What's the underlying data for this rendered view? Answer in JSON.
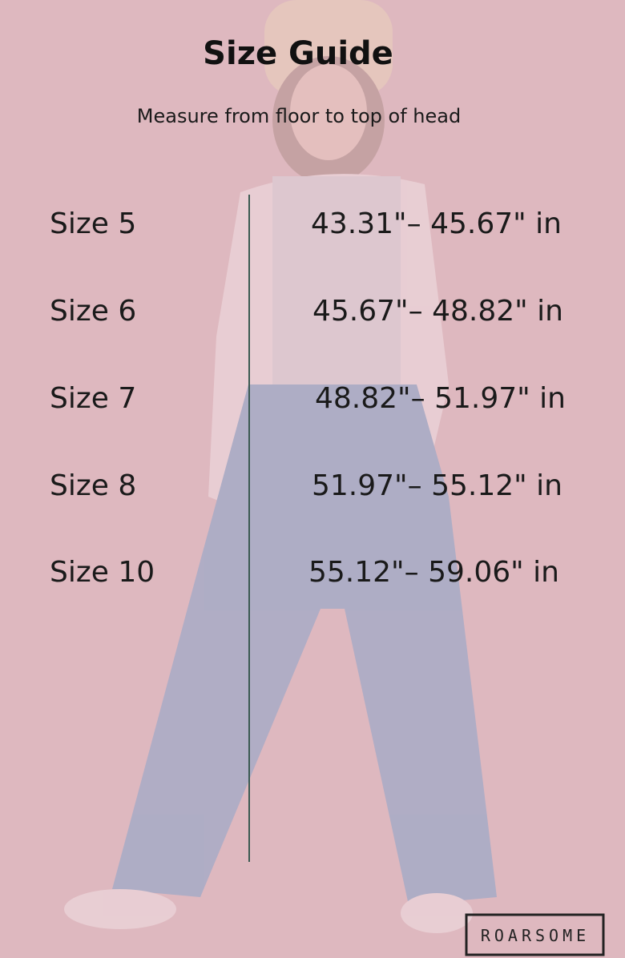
{
  "title": "Size Guide",
  "subtitle": "Measure from floor to top of head",
  "rows": [
    {
      "size": "Size 5",
      "range": "43.31\"– 45.67\" in"
    },
    {
      "size": "Size 6",
      "range": "45.67\"– 48.82\" in"
    },
    {
      "size": "Size 7",
      "range": "48.82\"– 51.97\" in"
    },
    {
      "size": "Size 8",
      "range": "51.97\"– 55.12\" in"
    },
    {
      "size": "Size 10",
      "range": "55.12\"– 59.06\" in"
    }
  ],
  "logo": "ROARSOME"
}
